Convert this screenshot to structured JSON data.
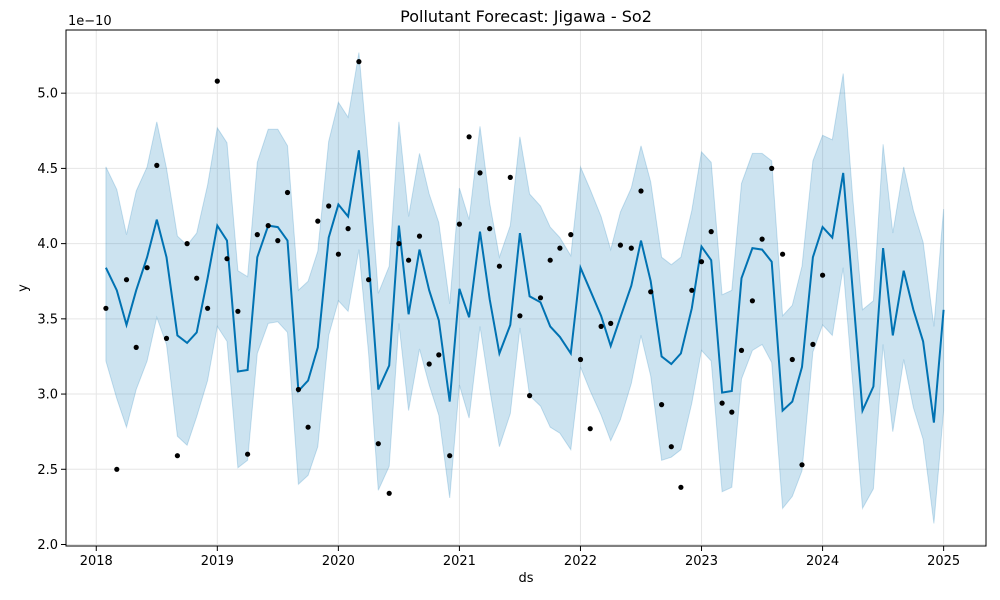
{
  "chart_data": {
    "type": "line",
    "title": "Pollutant Forecast: Jigawa - So2",
    "xlabel": "ds",
    "ylabel": "y",
    "y_multiplier_label": "1e−10",
    "y_scale": 1e-10,
    "xlim": [
      2017.75,
      2025.35
    ],
    "ylim": [
      1.99,
      5.42
    ],
    "x_ticks": [
      2018,
      2019,
      2020,
      2021,
      2022,
      2023,
      2024,
      2025
    ],
    "x_tick_labels": [
      "2018",
      "2019",
      "2020",
      "2021",
      "2022",
      "2023",
      "2024",
      "2025"
    ],
    "y_ticks": [
      2.0,
      2.5,
      3.0,
      3.5,
      4.0,
      4.5,
      5.0
    ],
    "y_tick_labels": [
      "2.0",
      "2.5",
      "3.0",
      "3.5",
      "4.0",
      "4.5",
      "5.0"
    ],
    "grid": true,
    "colors": {
      "forecast": "#0072B2",
      "band": "#0072B2",
      "observed": "#000000",
      "grid": "#e6e6e6"
    },
    "forecast": {
      "x": [
        2018.08,
        2018.17,
        2018.25,
        2018.33,
        2018.42,
        2018.5,
        2018.58,
        2018.67,
        2018.75,
        2018.83,
        2018.92,
        2019.0,
        2019.08,
        2019.17,
        2019.25,
        2019.33,
        2019.42,
        2019.5,
        2019.58,
        2019.67,
        2019.75,
        2019.83,
        2019.92,
        2020.0,
        2020.08,
        2020.17,
        2020.25,
        2020.33,
        2020.42,
        2020.5,
        2020.58,
        2020.67,
        2020.75,
        2020.83,
        2020.92,
        2021.0,
        2021.08,
        2021.17,
        2021.25,
        2021.33,
        2021.42,
        2021.5,
        2021.58,
        2021.67,
        2021.75,
        2021.83,
        2021.92,
        2022.0,
        2022.08,
        2022.17,
        2022.25,
        2022.33,
        2022.42,
        2022.5,
        2022.58,
        2022.67,
        2022.75,
        2022.83,
        2022.92,
        2023.0,
        2023.08,
        2023.17,
        2023.25,
        2023.33,
        2023.42,
        2023.5,
        2023.58,
        2023.67,
        2023.75,
        2023.83,
        2023.92,
        2024.0,
        2024.08,
        2024.17,
        2024.25,
        2024.33,
        2024.42,
        2024.5,
        2024.58,
        2024.67,
        2024.75,
        2024.83,
        2024.92,
        2025.0
      ],
      "yhat": [
        3.84,
        3.69,
        3.46,
        3.69,
        3.91,
        4.16,
        3.91,
        3.39,
        3.34,
        3.41,
        3.77,
        4.12,
        4.02,
        3.15,
        3.16,
        3.91,
        4.12,
        4.11,
        4.02,
        3.02,
        3.09,
        3.31,
        4.04,
        4.26,
        4.18,
        4.62,
        3.9,
        3.03,
        3.19,
        4.12,
        3.53,
        3.96,
        3.69,
        3.49,
        2.95,
        3.7,
        3.51,
        4.08,
        3.63,
        3.27,
        3.46,
        4.07,
        3.65,
        3.61,
        3.45,
        3.38,
        3.27,
        3.84,
        3.69,
        3.52,
        3.32,
        3.51,
        3.72,
        4.02,
        3.75,
        3.25,
        3.2,
        3.27,
        3.57,
        3.98,
        3.89,
        3.01,
        3.02,
        3.77,
        3.97,
        3.96,
        3.88,
        2.89,
        2.95,
        3.18,
        3.91,
        4.11,
        4.04,
        4.47,
        3.68,
        2.89,
        3.05,
        3.97,
        3.39,
        3.82,
        3.56,
        3.35,
        2.81,
        3.56
      ],
      "yhat_upper": [
        4.51,
        4.36,
        4.06,
        4.35,
        4.51,
        4.81,
        4.5,
        4.05,
        3.99,
        4.07,
        4.39,
        4.77,
        4.67,
        3.82,
        3.78,
        4.54,
        4.76,
        4.76,
        4.65,
        3.69,
        3.75,
        3.95,
        4.68,
        4.94,
        4.84,
        5.27,
        4.54,
        3.67,
        3.85,
        4.81,
        4.18,
        4.6,
        4.33,
        4.14,
        3.6,
        4.37,
        4.16,
        4.78,
        4.27,
        3.91,
        4.12,
        4.71,
        4.33,
        4.25,
        4.11,
        4.04,
        3.92,
        4.51,
        4.36,
        4.18,
        3.96,
        4.21,
        4.37,
        4.65,
        4.41,
        3.91,
        3.86,
        3.91,
        4.22,
        4.61,
        4.54,
        3.66,
        3.69,
        4.4,
        4.6,
        4.6,
        4.55,
        3.52,
        3.59,
        3.85,
        4.55,
        4.72,
        4.69,
        5.13,
        4.3,
        3.56,
        3.62,
        4.66,
        4.07,
        4.51,
        4.22,
        4.01,
        3.45,
        4.23
      ],
      "yhat_lower": [
        3.22,
        2.97,
        2.78,
        3.03,
        3.22,
        3.51,
        3.33,
        2.72,
        2.66,
        2.85,
        3.09,
        3.45,
        3.35,
        2.51,
        2.56,
        3.27,
        3.47,
        3.48,
        3.41,
        2.4,
        2.46,
        2.65,
        3.39,
        3.62,
        3.55,
        3.96,
        3.27,
        2.36,
        2.52,
        3.47,
        2.89,
        3.3,
        3.06,
        2.86,
        2.31,
        3.06,
        2.84,
        3.45,
        3.03,
        2.65,
        2.87,
        3.44,
        2.99,
        2.92,
        2.78,
        2.74,
        2.63,
        3.18,
        3.02,
        2.86,
        2.69,
        2.83,
        3.07,
        3.39,
        3.12,
        2.56,
        2.58,
        2.63,
        2.94,
        3.29,
        3.22,
        2.35,
        2.38,
        3.1,
        3.29,
        3.33,
        3.21,
        2.24,
        2.32,
        2.49,
        3.28,
        3.46,
        3.39,
        3.84,
        3.06,
        2.24,
        2.37,
        3.33,
        2.75,
        3.23,
        2.91,
        2.7,
        2.14,
        2.89
      ]
    },
    "observed": {
      "x": [
        2018.08,
        2018.17,
        2018.25,
        2018.33,
        2018.42,
        2018.5,
        2018.58,
        2018.67,
        2018.75,
        2018.83,
        2018.92,
        2019.0,
        2019.08,
        2019.17,
        2019.25,
        2019.33,
        2019.42,
        2019.5,
        2019.58,
        2019.67,
        2019.75,
        2019.83,
        2019.92,
        2020.0,
        2020.08,
        2020.17,
        2020.25,
        2020.33,
        2020.42,
        2020.5,
        2020.58,
        2020.67,
        2020.75,
        2020.83,
        2020.92,
        2021.0,
        2021.08,
        2021.17,
        2021.25,
        2021.33,
        2021.42,
        2021.5,
        2021.58,
        2021.67,
        2021.75,
        2021.83,
        2021.92,
        2022.0,
        2022.08,
        2022.17,
        2022.25,
        2022.33,
        2022.42,
        2022.5,
        2022.58,
        2022.67,
        2022.75,
        2022.83,
        2022.92,
        2023.0,
        2023.08,
        2023.17,
        2023.25,
        2023.33,
        2023.42,
        2023.5,
        2023.58,
        2023.67,
        2023.75,
        2023.83,
        2023.92,
        2024.0
      ],
      "y": [
        3.57,
        2.5,
        3.76,
        3.31,
        3.84,
        4.52,
        3.37,
        2.59,
        4.0,
        3.77,
        3.57,
        5.08,
        3.9,
        3.55,
        2.6,
        4.06,
        4.12,
        4.02,
        4.34,
        3.03,
        2.78,
        4.15,
        4.25,
        3.93,
        4.1,
        5.21,
        3.76,
        2.67,
        2.34,
        4.0,
        3.89,
        4.05,
        3.2,
        3.26,
        2.59,
        4.13,
        4.71,
        4.47,
        4.1,
        3.85,
        4.44,
        3.52,
        2.99,
        3.64,
        3.89,
        3.97,
        4.06,
        3.23,
        2.77,
        3.45,
        3.47,
        3.99,
        3.97,
        4.35,
        3.68,
        2.93,
        2.65,
        2.38,
        3.69,
        3.88,
        4.08,
        2.94,
        2.88,
        3.29,
        3.62,
        4.03,
        4.5,
        3.93,
        3.23,
        2.53,
        3.33,
        3.79
      ]
    }
  }
}
